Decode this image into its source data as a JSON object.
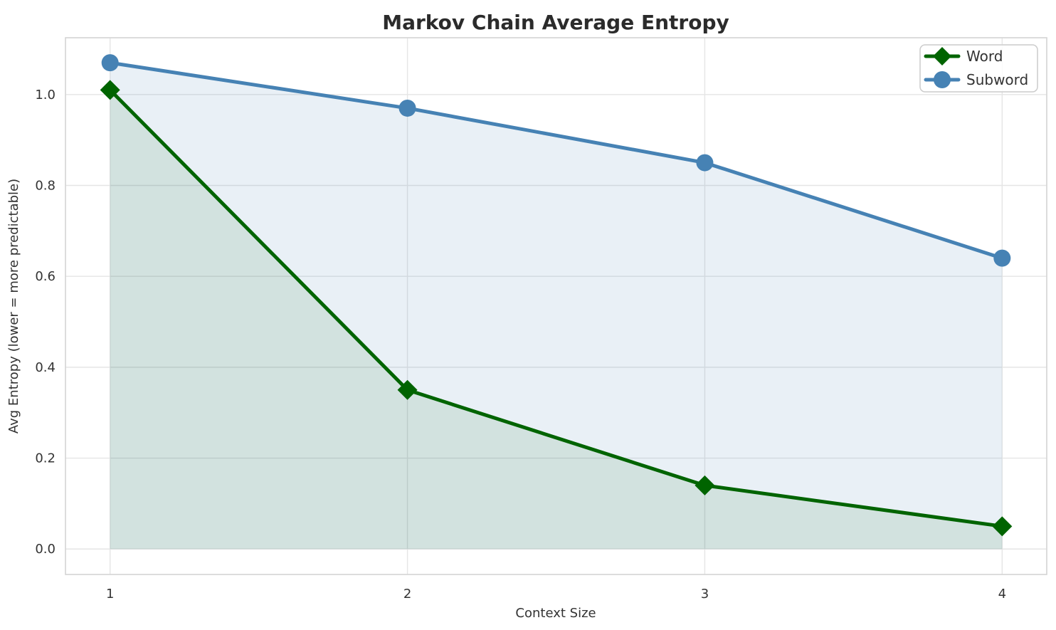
{
  "chart_data": {
    "type": "line",
    "title": "Markov Chain Average Entropy",
    "xlabel": "Context Size",
    "ylabel": "Avg Entropy (lower = more predictable)",
    "x": [
      1,
      2,
      3,
      4
    ],
    "x_ticks": [
      "1",
      "2",
      "3",
      "4"
    ],
    "y_ticks": [
      "0.0",
      "0.2",
      "0.4",
      "0.6",
      "0.8",
      "1.0"
    ],
    "y_tick_values": [
      0.0,
      0.2,
      0.4,
      0.6,
      0.8,
      1.0
    ],
    "xlim": [
      0.85,
      4.15
    ],
    "ylim": [
      -0.056,
      1.125
    ],
    "grid": true,
    "legend_position": "upper right",
    "fill_to_zero": true,
    "series": [
      {
        "name": "Word",
        "values": [
          1.01,
          0.35,
          0.14,
          0.05
        ],
        "color": "#006400",
        "fill_color": "rgba(0,100,0,0.10)",
        "marker": "diamond"
      },
      {
        "name": "Subword",
        "values": [
          1.07,
          0.97,
          0.85,
          0.64
        ],
        "color": "#4682b4",
        "fill_color": "rgba(70,130,180,0.12)",
        "marker": "circle"
      }
    ]
  },
  "style_colors": {
    "grid": "#e5e5e5",
    "spine": "#d4d4d4",
    "legend_border": "#cccccc",
    "legend_bg": "#ffffff",
    "text": "#333333",
    "title": "#2b2b2b"
  }
}
